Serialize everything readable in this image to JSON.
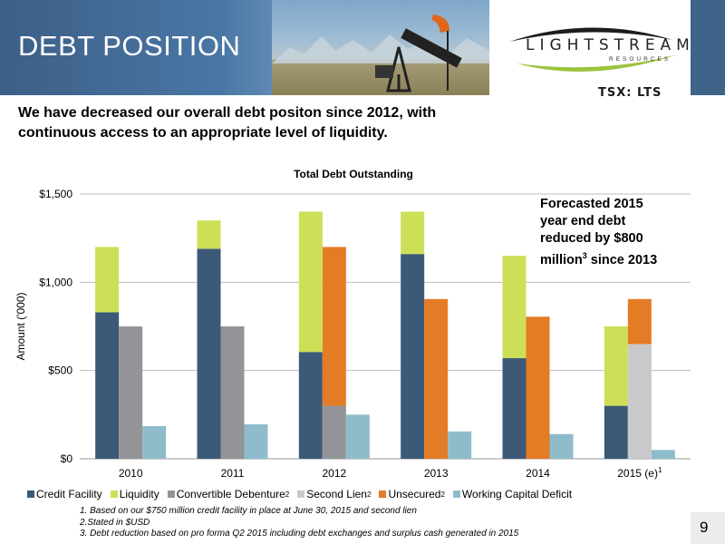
{
  "slide": {
    "title": "DEBT POSITION",
    "subtitle": "We have decreased our overall debt positon since 2012, with continuous access to an appropriate level of liquidity.",
    "page_number": "9"
  },
  "logo": {
    "name": "LIGHTSTREAM",
    "sub": "RESOURCES",
    "ticker": "TSX: LTS"
  },
  "forecast": {
    "line1": "Forecasted 2015",
    "line2": "year end debt",
    "line3": "reduced by $800",
    "line4a": "million",
    "line4sup": "3",
    "line4b": " since 2013"
  },
  "chart_data": {
    "type": "bar",
    "title": "Total Debt Outstanding",
    "ylabel": "Amount ('000)",
    "xlabel": "",
    "ylim": [
      0,
      1500
    ],
    "yticks": [
      0,
      500,
      1000,
      1500
    ],
    "ytick_labels": [
      "$0",
      "$500",
      "$1,000",
      "$1,500"
    ],
    "categories": [
      "2010",
      "2011",
      "2012",
      "2013",
      "2014",
      "2015 (e)"
    ],
    "category_sups": [
      "",
      "",
      "",
      "",
      "",
      "1"
    ],
    "grid": true,
    "legend_position": "bottom",
    "series": [
      {
        "name": "Credit Facility",
        "sup": "",
        "color": "#3c5a78",
        "stack": "A",
        "values": [
          830,
          1190,
          605,
          1160,
          570,
          300
        ]
      },
      {
        "name": "Liquidity",
        "sup": "",
        "color": "#cddf57",
        "stack": "A",
        "values": [
          370,
          160,
          795,
          240,
          580,
          450
        ]
      },
      {
        "name": "Convertible Debenture",
        "sup": "2",
        "color": "#929497",
        "stack": "B",
        "values": [
          750,
          750,
          300,
          0,
          0,
          0
        ]
      },
      {
        "name": "Second Lien",
        "sup": "2",
        "color": "#c9c9cb",
        "stack": "B",
        "values": [
          0,
          0,
          0,
          0,
          0,
          650
        ]
      },
      {
        "name": "Unsecured",
        "sup": "2",
        "color": "#e47b25",
        "stack": "B",
        "values": [
          0,
          0,
          900,
          905,
          805,
          255
        ]
      },
      {
        "name": "Working Capital Deficit",
        "sup": "",
        "color": "#8fbccb",
        "stack": "C",
        "values": [
          185,
          195,
          250,
          155,
          140,
          50
        ]
      }
    ]
  },
  "footnotes": [
    "1. Based on our $750 million credit facility in place at June 30, 2015 and second lien",
    "2.Stated  in $USD",
    "3. Debt reduction based on pro forma Q2 2015 including debt exchanges and surplus cash generated in 2015"
  ]
}
